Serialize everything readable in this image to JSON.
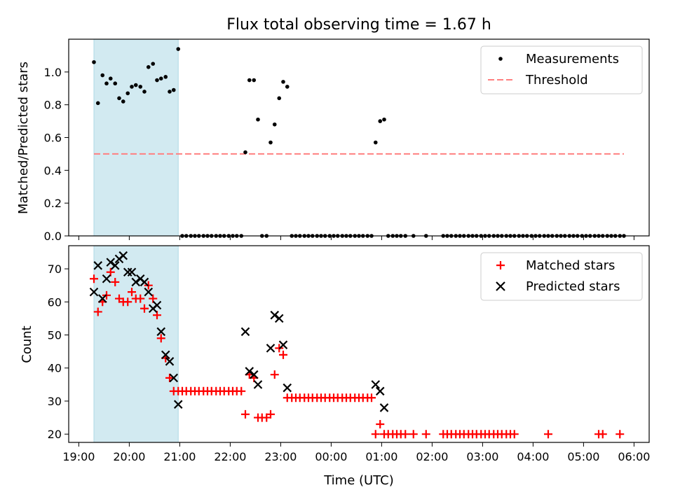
{
  "title": "Flux total observing time = 1.67 h",
  "xlabel": "Time (UTC)",
  "x_tick_labels": [
    "19:00",
    "20:00",
    "21:00",
    "22:00",
    "23:00",
    "00:00",
    "01:00",
    "02:00",
    "03:00",
    "04:00",
    "05:00",
    "06:00"
  ],
  "colors": {
    "shade": "#add8e6",
    "threshold": "#ff8080",
    "measurement": "#000000",
    "matched": "#ff0000",
    "predicted": "#000000"
  },
  "chart_data": [
    {
      "type": "scatter",
      "ylabel": "Matched/Predicted stars",
      "y_tick_labels": [
        "0.0",
        "0.2",
        "0.4",
        "0.6",
        "0.8",
        "1.0"
      ],
      "ylim": [
        0,
        1.2
      ],
      "xlim_hours": [
        18.8,
        30.3
      ],
      "shaded_span_hours": [
        19.3,
        20.97
      ],
      "legend": {
        "position": "upper right",
        "entries": [
          "Measurements",
          "Threshold"
        ]
      },
      "threshold": {
        "name": "Threshold",
        "y": 0.5,
        "x_hours": [
          19.3,
          29.8
        ]
      },
      "series": [
        {
          "name": "Measurements",
          "marker": "dot",
          "points": [
            [
              19.3,
              1.06
            ],
            [
              19.38,
              0.81
            ],
            [
              19.47,
              0.98
            ],
            [
              19.55,
              0.93
            ],
            [
              19.63,
              0.96
            ],
            [
              19.72,
              0.93
            ],
            [
              19.8,
              0.84
            ],
            [
              19.88,
              0.82
            ],
            [
              19.97,
              0.87
            ],
            [
              20.05,
              0.91
            ],
            [
              20.13,
              0.92
            ],
            [
              20.22,
              0.91
            ],
            [
              20.3,
              0.88
            ],
            [
              20.38,
              1.03
            ],
            [
              20.47,
              1.05
            ],
            [
              20.55,
              0.95
            ],
            [
              20.63,
              0.96
            ],
            [
              20.72,
              0.97
            ],
            [
              20.8,
              0.88
            ],
            [
              20.88,
              0.89
            ],
            [
              20.97,
              1.14
            ],
            [
              21.05,
              0
            ],
            [
              21.13,
              0
            ],
            [
              21.22,
              0
            ],
            [
              21.3,
              0
            ],
            [
              21.38,
              0
            ],
            [
              21.47,
              0
            ],
            [
              21.55,
              0
            ],
            [
              21.63,
              0
            ],
            [
              21.72,
              0
            ],
            [
              21.8,
              0
            ],
            [
              21.88,
              0
            ],
            [
              21.97,
              0
            ],
            [
              22.05,
              0
            ],
            [
              22.13,
              0
            ],
            [
              22.22,
              0
            ],
            [
              22.3,
              0.51
            ],
            [
              22.38,
              0.95
            ],
            [
              22.47,
              0.95
            ],
            [
              22.55,
              0.71
            ],
            [
              22.63,
              0
            ],
            [
              22.72,
              0
            ],
            [
              22.8,
              0.57
            ],
            [
              22.88,
              0.68
            ],
            [
              22.97,
              0.84
            ],
            [
              23.05,
              0.94
            ],
            [
              23.13,
              0.91
            ],
            [
              23.22,
              0
            ],
            [
              23.3,
              0
            ],
            [
              23.38,
              0
            ],
            [
              23.47,
              0
            ],
            [
              23.55,
              0
            ],
            [
              23.63,
              0
            ],
            [
              23.72,
              0
            ],
            [
              23.8,
              0
            ],
            [
              23.88,
              0
            ],
            [
              23.97,
              0
            ],
            [
              24.05,
              0
            ],
            [
              24.13,
              0
            ],
            [
              24.22,
              0
            ],
            [
              24.3,
              0
            ],
            [
              24.38,
              0
            ],
            [
              24.47,
              0
            ],
            [
              24.55,
              0
            ],
            [
              24.63,
              0
            ],
            [
              24.72,
              0
            ],
            [
              24.8,
              0
            ],
            [
              24.88,
              0.57
            ],
            [
              24.97,
              0.7
            ],
            [
              25.05,
              0.71
            ],
            [
              25.13,
              0
            ],
            [
              25.22,
              0
            ],
            [
              25.3,
              0
            ],
            [
              25.38,
              0
            ],
            [
              25.47,
              0
            ],
            [
              25.63,
              0
            ],
            [
              25.88,
              0
            ],
            [
              26.22,
              0
            ],
            [
              26.3,
              0
            ],
            [
              26.38,
              0
            ],
            [
              26.47,
              0
            ],
            [
              26.55,
              0
            ],
            [
              26.63,
              0
            ],
            [
              26.72,
              0
            ],
            [
              26.8,
              0
            ],
            [
              26.88,
              0
            ],
            [
              26.97,
              0
            ],
            [
              27.05,
              0
            ],
            [
              27.13,
              0
            ],
            [
              27.22,
              0
            ],
            [
              27.3,
              0
            ],
            [
              27.38,
              0
            ],
            [
              27.47,
              0
            ],
            [
              27.55,
              0
            ],
            [
              27.63,
              0
            ],
            [
              27.72,
              0
            ],
            [
              27.8,
              0
            ],
            [
              27.88,
              0
            ],
            [
              27.97,
              0
            ],
            [
              28.05,
              0
            ],
            [
              28.13,
              0
            ],
            [
              28.22,
              0
            ],
            [
              28.3,
              0
            ],
            [
              28.38,
              0
            ],
            [
              28.47,
              0
            ],
            [
              28.55,
              0
            ],
            [
              28.63,
              0
            ],
            [
              28.72,
              0
            ],
            [
              28.8,
              0
            ],
            [
              28.88,
              0
            ],
            [
              28.97,
              0
            ],
            [
              29.05,
              0
            ],
            [
              29.13,
              0
            ],
            [
              29.22,
              0
            ],
            [
              29.3,
              0
            ],
            [
              29.38,
              0
            ],
            [
              29.47,
              0
            ],
            [
              29.55,
              0
            ],
            [
              29.63,
              0
            ],
            [
              29.72,
              0
            ],
            [
              29.8,
              0
            ]
          ]
        }
      ]
    },
    {
      "type": "scatter",
      "ylabel": "Count",
      "y_tick_labels": [
        "20",
        "30",
        "40",
        "50",
        "60",
        "70"
      ],
      "ylim": [
        17.5,
        77
      ],
      "xlim_hours": [
        18.8,
        30.3
      ],
      "shaded_span_hours": [
        19.3,
        20.97
      ],
      "legend": {
        "position": "upper right",
        "entries": [
          "Matched stars",
          "Predicted stars"
        ]
      },
      "series": [
        {
          "name": "Matched stars",
          "marker": "plus",
          "points": [
            [
              19.3,
              67
            ],
            [
              19.38,
              57
            ],
            [
              19.47,
              60
            ],
            [
              19.55,
              62
            ],
            [
              19.63,
              69
            ],
            [
              19.72,
              66
            ],
            [
              19.8,
              61
            ],
            [
              19.88,
              60
            ],
            [
              19.97,
              60
            ],
            [
              20.05,
              63
            ],
            [
              20.13,
              61
            ],
            [
              20.22,
              61
            ],
            [
              20.3,
              58
            ],
            [
              20.38,
              65
            ],
            [
              20.47,
              61
            ],
            [
              20.55,
              56
            ],
            [
              20.63,
              49
            ],
            [
              20.72,
              43
            ],
            [
              20.8,
              37
            ],
            [
              20.88,
              33
            ],
            [
              20.97,
              33
            ],
            [
              21.05,
              33
            ],
            [
              21.13,
              33
            ],
            [
              21.22,
              33
            ],
            [
              21.3,
              33
            ],
            [
              21.38,
              33
            ],
            [
              21.47,
              33
            ],
            [
              21.55,
              33
            ],
            [
              21.63,
              33
            ],
            [
              21.72,
              33
            ],
            [
              21.8,
              33
            ],
            [
              21.88,
              33
            ],
            [
              21.97,
              33
            ],
            [
              22.05,
              33
            ],
            [
              22.13,
              33
            ],
            [
              22.22,
              33
            ],
            [
              22.3,
              26
            ],
            [
              22.38,
              38
            ],
            [
              22.47,
              37
            ],
            [
              22.55,
              25
            ],
            [
              22.63,
              25
            ],
            [
              22.72,
              25
            ],
            [
              22.8,
              26
            ],
            [
              22.88,
              38
            ],
            [
              22.97,
              46
            ],
            [
              23.05,
              44
            ],
            [
              23.13,
              31
            ],
            [
              23.22,
              31
            ],
            [
              23.3,
              31
            ],
            [
              23.38,
              31
            ],
            [
              23.47,
              31
            ],
            [
              23.55,
              31
            ],
            [
              23.63,
              31
            ],
            [
              23.72,
              31
            ],
            [
              23.8,
              31
            ],
            [
              23.88,
              31
            ],
            [
              23.97,
              31
            ],
            [
              24.05,
              31
            ],
            [
              24.13,
              31
            ],
            [
              24.22,
              31
            ],
            [
              24.3,
              31
            ],
            [
              24.38,
              31
            ],
            [
              24.47,
              31
            ],
            [
              24.55,
              31
            ],
            [
              24.63,
              31
            ],
            [
              24.72,
              31
            ],
            [
              24.8,
              31
            ],
            [
              24.88,
              20
            ],
            [
              24.97,
              23
            ],
            [
              25.05,
              20
            ],
            [
              25.13,
              20
            ],
            [
              25.22,
              20
            ],
            [
              25.3,
              20
            ],
            [
              25.38,
              20
            ],
            [
              25.47,
              20
            ],
            [
              25.63,
              20
            ],
            [
              25.88,
              20
            ],
            [
              26.22,
              20
            ],
            [
              26.3,
              20
            ],
            [
              26.38,
              20
            ],
            [
              26.47,
              20
            ],
            [
              26.55,
              20
            ],
            [
              26.63,
              20
            ],
            [
              26.72,
              20
            ],
            [
              26.8,
              20
            ],
            [
              26.88,
              20
            ],
            [
              26.97,
              20
            ],
            [
              27.05,
              20
            ],
            [
              27.13,
              20
            ],
            [
              27.22,
              20
            ],
            [
              27.3,
              20
            ],
            [
              27.38,
              20
            ],
            [
              27.47,
              20
            ],
            [
              27.55,
              20
            ],
            [
              27.63,
              20
            ],
            [
              28.3,
              20
            ],
            [
              29.3,
              20
            ],
            [
              29.38,
              20
            ],
            [
              29.72,
              20
            ]
          ]
        },
        {
          "name": "Predicted stars",
          "marker": "x",
          "points": [
            [
              19.3,
              63
            ],
            [
              19.38,
              71
            ],
            [
              19.47,
              61
            ],
            [
              19.55,
              67
            ],
            [
              19.63,
              72
            ],
            [
              19.72,
              71
            ],
            [
              19.8,
              73
            ],
            [
              19.88,
              74
            ],
            [
              19.97,
              69
            ],
            [
              20.05,
              69
            ],
            [
              20.13,
              66
            ],
            [
              20.22,
              67
            ],
            [
              20.3,
              66
            ],
            [
              20.38,
              63
            ],
            [
              20.47,
              58
            ],
            [
              20.55,
              59
            ],
            [
              20.63,
              51
            ],
            [
              20.72,
              44
            ],
            [
              20.8,
              42
            ],
            [
              20.88,
              37
            ],
            [
              20.97,
              29
            ],
            [
              22.3,
              51
            ],
            [
              22.38,
              39
            ],
            [
              22.47,
              38
            ],
            [
              22.55,
              35
            ],
            [
              22.8,
              46
            ],
            [
              22.88,
              56
            ],
            [
              22.97,
              55
            ],
            [
              23.05,
              47
            ],
            [
              23.13,
              34
            ],
            [
              24.88,
              35
            ],
            [
              24.97,
              33
            ],
            [
              25.05,
              28
            ]
          ]
        }
      ]
    }
  ]
}
